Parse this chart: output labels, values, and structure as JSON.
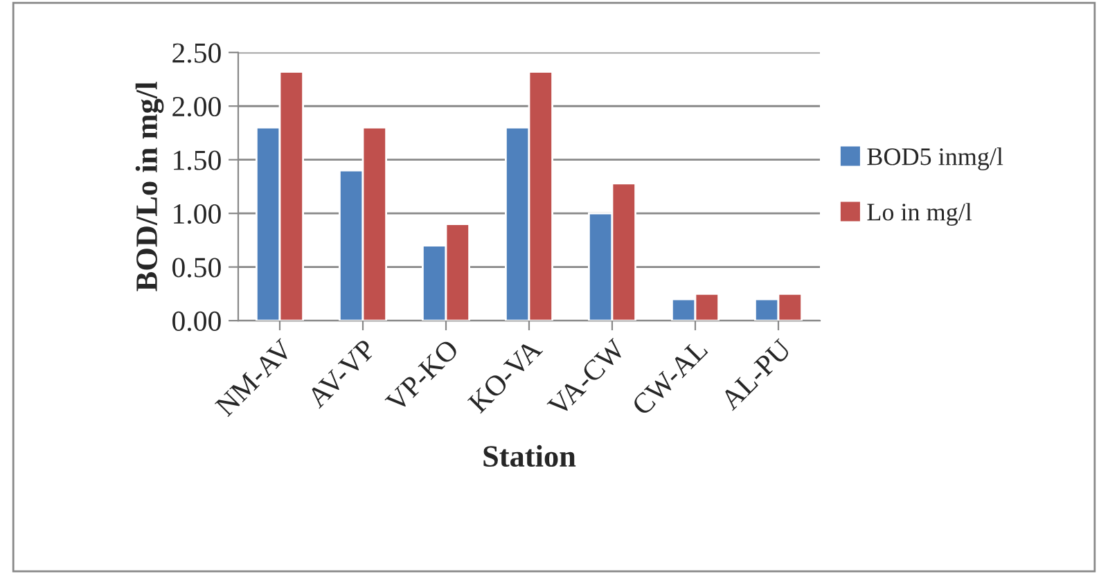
{
  "chart_data": {
    "type": "bar",
    "xlabel": "Station",
    "ylabel": "BOD/Lo in mg/l",
    "categories": [
      "NM-AV",
      "AV-VP",
      "VP-KO",
      "KO-VA",
      "VA-CW",
      "CW-AL",
      "AL-PU"
    ],
    "series": [
      {
        "name": "BOD5 inmg/l",
        "color": "#4f81bd",
        "values": [
          1.8,
          1.4,
          0.7,
          1.8,
          1.0,
          0.2,
          0.2
        ]
      },
      {
        "name": "Lo in mg/l",
        "color": "#c0504d",
        "values": [
          2.32,
          1.8,
          0.9,
          2.32,
          1.28,
          0.25,
          0.25
        ]
      }
    ],
    "ylim": [
      0,
      2.5
    ],
    "yticks": [
      {
        "value": 0,
        "label": "0.00"
      },
      {
        "value": 0.5,
        "label": "0.50"
      },
      {
        "value": 1.0,
        "label": "1.00"
      },
      {
        "value": 1.5,
        "label": "1.50"
      },
      {
        "value": 2.0,
        "label": "2.00"
      },
      {
        "value": 2.5,
        "label": "2.50"
      }
    ],
    "grid": "y",
    "legend": "right"
  }
}
